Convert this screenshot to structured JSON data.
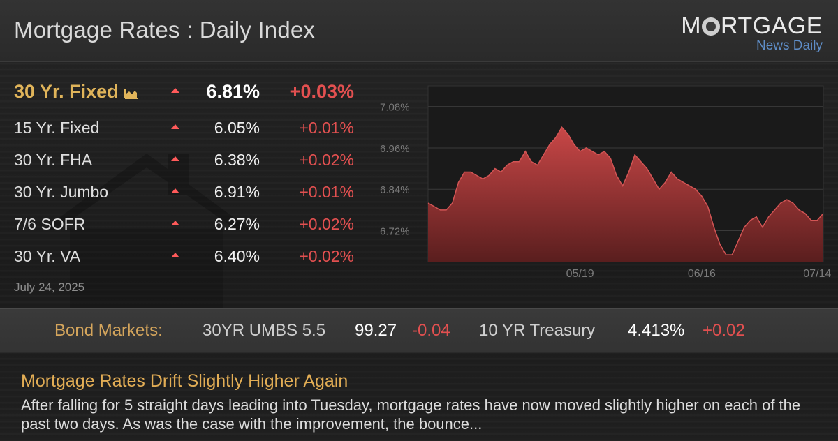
{
  "header": {
    "title": "Mortgage Rates : Daily Index",
    "logo": {
      "main_pre": "M",
      "main_post": "RTGAGE",
      "sub": "News Daily"
    }
  },
  "rates": [
    {
      "name": "30 Yr. Fixed",
      "rate": "6.81%",
      "change": "+0.03%",
      "direction": "up",
      "featured": true
    },
    {
      "name": "15 Yr. Fixed",
      "rate": "6.05%",
      "change": "+0.01%",
      "direction": "up"
    },
    {
      "name": "30 Yr. FHA",
      "rate": "6.38%",
      "change": "+0.02%",
      "direction": "up"
    },
    {
      "name": "30 Yr. Jumbo",
      "rate": "6.91%",
      "change": "+0.01%",
      "direction": "up"
    },
    {
      "name": "7/6 SOFR",
      "rate": "6.27%",
      "change": "+0.02%",
      "direction": "up"
    },
    {
      "name": "30 Yr. VA",
      "rate": "6.40%",
      "change": "+0.02%",
      "direction": "up"
    }
  ],
  "date": "July 24, 2025",
  "chart_data": {
    "type": "area",
    "ylim": [
      6.63,
      7.14
    ],
    "yticks": [
      "7.08%",
      "6.96%",
      "6.84%",
      "6.72%"
    ],
    "ytick_values": [
      7.08,
      6.96,
      6.84,
      6.72
    ],
    "xticks": [
      "05/19",
      "06/16",
      "07/14"
    ],
    "xtick_index": [
      25,
      45,
      64
    ],
    "grid": true,
    "colors": {
      "fill_top": "#c94747",
      "fill_bottom": "#5a1e1e",
      "line": "#d25555"
    },
    "values": [
      6.8,
      6.79,
      6.78,
      6.78,
      6.8,
      6.86,
      6.89,
      6.89,
      6.88,
      6.87,
      6.88,
      6.9,
      6.89,
      6.91,
      6.92,
      6.92,
      6.95,
      6.92,
      6.91,
      6.94,
      6.97,
      6.99,
      7.02,
      7.0,
      6.97,
      6.95,
      6.96,
      6.95,
      6.94,
      6.95,
      6.93,
      6.88,
      6.85,
      6.89,
      6.94,
      6.92,
      6.9,
      6.87,
      6.84,
      6.86,
      6.89,
      6.87,
      6.86,
      6.85,
      6.84,
      6.82,
      6.79,
      6.73,
      6.68,
      6.65,
      6.65,
      6.69,
      6.73,
      6.75,
      6.76,
      6.73,
      6.76,
      6.78,
      6.8,
      6.81,
      6.8,
      6.78,
      6.77,
      6.75,
      6.75,
      6.77
    ]
  },
  "bond_markets": {
    "label": "Bond Markets:",
    "umbs": {
      "name": "30YR UMBS 5.5",
      "price": "99.27",
      "change": "-0.04"
    },
    "treasury": {
      "name": "10 YR Treasury",
      "yield": "4.413%",
      "change": "+0.02"
    }
  },
  "news": {
    "headline": "Mortgage Rates Drift Slightly Higher Again",
    "summary": "After falling for 5 straight days leading into Tuesday, mortgage rates have now moved slightly higher on each of the past two days. As was the case with the improvement, the bounce..."
  }
}
